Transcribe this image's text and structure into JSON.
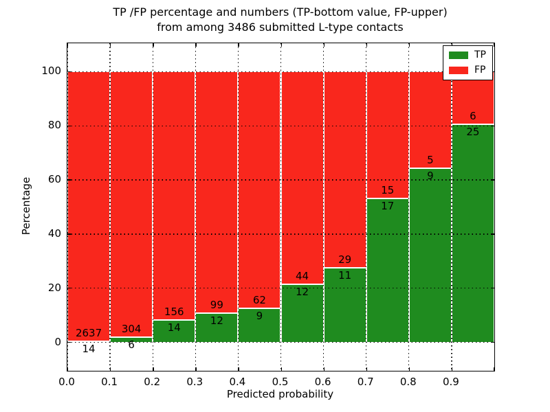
{
  "title": {
    "line1": "TP /FP percentage and numbers (TP-bottom value, FP-upper)",
    "line2": "from among 3486 submitted L-type contacts"
  },
  "chart_data": {
    "type": "bar",
    "stacked": true,
    "normalized_to_percent": true,
    "bin_edges": [
      0.0,
      0.1,
      0.2,
      0.3,
      0.4,
      0.5,
      0.6,
      0.7,
      0.8,
      0.9,
      1.0
    ],
    "series": [
      {
        "name": "TP",
        "color": "#1f8b1f",
        "counts": [
          14,
          6,
          14,
          12,
          9,
          12,
          11,
          17,
          9,
          25
        ]
      },
      {
        "name": "FP",
        "color": "#f9271d",
        "counts": [
          2637,
          304,
          156,
          99,
          62,
          44,
          29,
          15,
          5,
          6
        ]
      }
    ],
    "tp_percent_of_bin": [
      0.53,
      1.94,
      8.24,
      10.81,
      12.68,
      21.43,
      27.5,
      53.13,
      64.29,
      80.65
    ],
    "total_contacts": 3486,
    "xlabel": "Predicted probability",
    "ylabel": "Percentage",
    "x_tick_labels": [
      "0.0",
      "0.1",
      "0.2",
      "0.3",
      "0.4",
      "0.5",
      "0.6",
      "0.7",
      "0.8",
      "0.9"
    ],
    "y_tick_values": [
      0,
      20,
      40,
      60,
      80,
      100
    ],
    "xlim": [
      0.0,
      1.0
    ],
    "ylim": [
      -10.5,
      110.5
    ],
    "grid": true,
    "grid_style": "dotted",
    "legend": {
      "entries": [
        "TP",
        "FP"
      ],
      "position": "upper right"
    }
  },
  "colors": {
    "tp": "#1f8b1f",
    "fp": "#f9271d",
    "grid": "#000000",
    "frame": "#000000",
    "background": "#ffffff",
    "label_text": "#000000"
  }
}
